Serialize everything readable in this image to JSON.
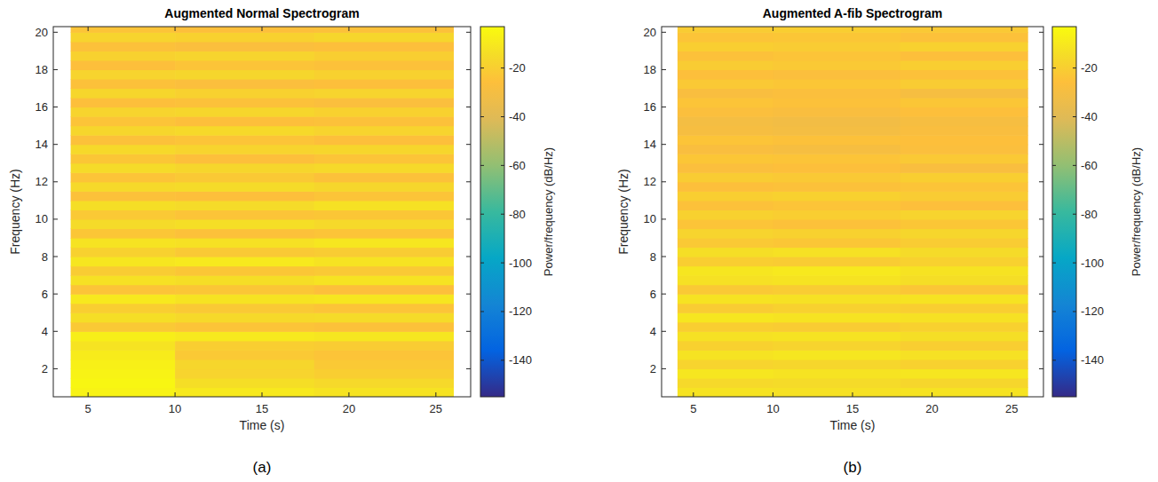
{
  "chart_data": [
    {
      "type": "heatmap",
      "title": "Augmented Normal Spectrogram",
      "panel_label": "(a)",
      "x_label": "Time (s)",
      "y_label": "Frequency (Hz)",
      "xlim": [
        3,
        27
      ],
      "xticks": [
        5,
        10,
        15,
        20,
        25
      ],
      "ylim": [
        0.5,
        20.3
      ],
      "yticks": [
        2,
        4,
        6,
        8,
        10,
        12,
        14,
        16,
        18,
        20
      ],
      "x_edges": [
        4,
        10,
        18,
        26
      ],
      "y_edges": [
        0.5,
        1,
        1.5,
        2,
        2.5,
        3,
        3.5,
        4,
        4.5,
        5,
        5.5,
        6,
        6.5,
        7,
        7.5,
        8,
        8.5,
        9,
        9.5,
        10,
        10.5,
        11,
        11.5,
        12,
        12.5,
        13,
        13.5,
        14,
        14.5,
        15,
        15.5,
        16,
        16.5,
        17,
        17.5,
        18,
        18.5,
        19,
        19.5,
        20,
        20.5
      ],
      "cells": [
        [
          -6,
          -10,
          -12
        ],
        [
          -5,
          -14,
          -16
        ],
        [
          -6,
          -18,
          -20
        ],
        [
          -7,
          -17,
          -22
        ],
        [
          -9,
          -22,
          -24
        ],
        [
          -12,
          -20,
          -21
        ],
        [
          -8,
          -10,
          -11
        ],
        [
          -22,
          -24,
          -25
        ],
        [
          -14,
          -16,
          -15
        ],
        [
          -20,
          -22,
          -24
        ],
        [
          -10,
          -12,
          -11
        ],
        [
          -24,
          -23,
          -26
        ],
        [
          -13,
          -14,
          -12
        ],
        [
          -21,
          -23,
          -22
        ],
        [
          -11,
          -10,
          -12
        ],
        [
          -19,
          -22,
          -21
        ],
        [
          -12,
          -13,
          -11
        ],
        [
          -23,
          -25,
          -24
        ],
        [
          -15,
          -14,
          -16
        ],
        [
          -22,
          -24,
          -23
        ],
        [
          -14,
          -15,
          -13
        ],
        [
          -25,
          -26,
          -24
        ],
        [
          -16,
          -15,
          -17
        ],
        [
          -24,
          -22,
          -25
        ],
        [
          -15,
          -17,
          -16
        ],
        [
          -23,
          -26,
          -24
        ],
        [
          -16,
          -18,
          -17
        ],
        [
          -25,
          -24,
          -26
        ],
        [
          -17,
          -16,
          -18
        ],
        [
          -24,
          -26,
          -25
        ],
        [
          -18,
          -17,
          -19
        ],
        [
          -26,
          -25,
          -27
        ],
        [
          -17,
          -19,
          -18
        ],
        [
          -25,
          -27,
          -26
        ],
        [
          -18,
          -17,
          -19
        ],
        [
          -26,
          -24,
          -25
        ],
        [
          -19,
          -18,
          -20
        ],
        [
          -25,
          -27,
          -26
        ],
        [
          -18,
          -19,
          -17
        ],
        [
          -24,
          -26,
          -25
        ]
      ],
      "colorbar": {
        "label": "Power/frequency (dB/Hz)",
        "lim": [
          -155,
          -3
        ],
        "ticks": [
          -140,
          -120,
          -100,
          -80,
          -60,
          -40,
          -20
        ]
      }
    },
    {
      "type": "heatmap",
      "title": "Augmented A-fib Spectrogram",
      "panel_label": "(b)",
      "x_label": "Time (s)",
      "y_label": "Frequency (Hz)",
      "xlim": [
        3,
        27
      ],
      "xticks": [
        5,
        10,
        15,
        20,
        25
      ],
      "ylim": [
        0.5,
        20.3
      ],
      "yticks": [
        2,
        4,
        6,
        8,
        10,
        12,
        14,
        16,
        18,
        20
      ],
      "x_edges": [
        4,
        10,
        18,
        26
      ],
      "y_edges": [
        0.5,
        1,
        1.5,
        2,
        2.5,
        3,
        3.5,
        4,
        4.5,
        5,
        5.5,
        6,
        6.5,
        7,
        7.5,
        8,
        8.5,
        9,
        9.5,
        10,
        10.5,
        11,
        11.5,
        12,
        12.5,
        13,
        13.5,
        14,
        14.5,
        15,
        15.5,
        16,
        16.5,
        17,
        17.5,
        18,
        18.5,
        19,
        19.5,
        20,
        20.5
      ],
      "cells": [
        [
          -12,
          -13,
          -12
        ],
        [
          -16,
          -15,
          -17
        ],
        [
          -11,
          -12,
          -11
        ],
        [
          -18,
          -17,
          -19
        ],
        [
          -12,
          -11,
          -13
        ],
        [
          -19,
          -18,
          -20
        ],
        [
          -13,
          -12,
          -14
        ],
        [
          -20,
          -21,
          -19
        ],
        [
          -11,
          -12,
          -13
        ],
        [
          -21,
          -19,
          -20
        ],
        [
          -12,
          -13,
          -12
        ],
        [
          -22,
          -21,
          -23
        ],
        [
          -13,
          -12,
          -14
        ],
        [
          -11,
          -10,
          -12
        ],
        [
          -20,
          -21,
          -19
        ],
        [
          -14,
          -13,
          -15
        ],
        [
          -22,
          -23,
          -21
        ],
        [
          -18,
          -19,
          -17
        ],
        [
          -24,
          -25,
          -23
        ],
        [
          -19,
          -20,
          -18
        ],
        [
          -25,
          -24,
          -26
        ],
        [
          -20,
          -19,
          -21
        ],
        [
          -26,
          -25,
          -24
        ],
        [
          -21,
          -22,
          -20
        ],
        [
          -27,
          -26,
          -28
        ],
        [
          -23,
          -24,
          -22
        ],
        [
          -28,
          -29,
          -27
        ],
        [
          -24,
          -25,
          -26
        ],
        [
          -29,
          -30,
          -28
        ],
        [
          -30,
          -31,
          -29
        ],
        [
          -27,
          -28,
          -26
        ],
        [
          -24,
          -25,
          -23
        ],
        [
          -28,
          -27,
          -29
        ],
        [
          -22,
          -23,
          -21
        ],
        [
          -26,
          -27,
          -25
        ],
        [
          -21,
          -22,
          -20
        ],
        [
          -25,
          -24,
          -26
        ],
        [
          -20,
          -21,
          -19
        ],
        [
          -24,
          -23,
          -25
        ],
        [
          -21,
          -20,
          -22
        ]
      ],
      "colorbar": {
        "label": "Power/frequency (dB/Hz)",
        "lim": [
          -155,
          -3
        ],
        "ticks": [
          -140,
          -120,
          -100,
          -80,
          -60,
          -40,
          -20
        ]
      }
    }
  ]
}
